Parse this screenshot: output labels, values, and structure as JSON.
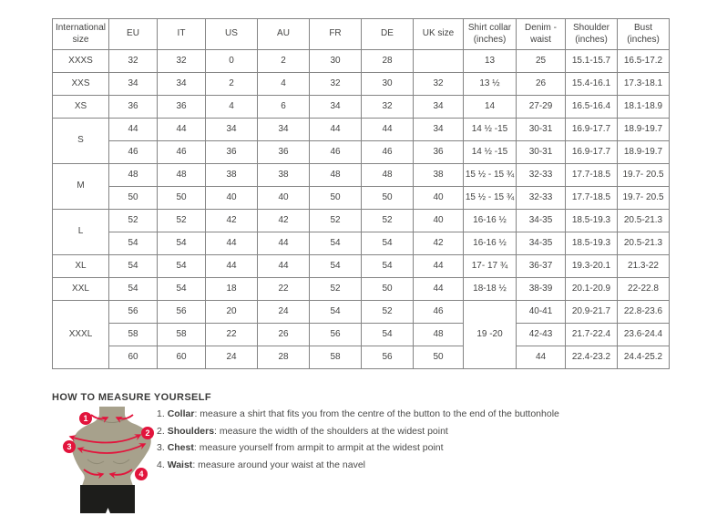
{
  "accent_color": "#e2143c",
  "figure_color": "#a7a18c",
  "size_table": {
    "columns": [
      "International size",
      "EU",
      "IT",
      "US",
      "AU",
      "FR",
      "DE",
      "UK size",
      "Shirt collar (inches)",
      "Denim - waist",
      "Shoulder (inches)",
      "Bust (inches)"
    ],
    "rows": [
      [
        {
          "t": "XXXS"
        },
        {
          "t": "32"
        },
        {
          "t": "32"
        },
        {
          "t": "0"
        },
        {
          "t": "2"
        },
        {
          "t": "30"
        },
        {
          "t": "28"
        },
        {
          "t": ""
        },
        {
          "t": "13"
        },
        {
          "t": "25"
        },
        {
          "t": "15.1-15.7"
        },
        {
          "t": "16.5-17.2"
        }
      ],
      [
        {
          "t": "XXS"
        },
        {
          "t": "34"
        },
        {
          "t": "34"
        },
        {
          "t": "2"
        },
        {
          "t": "4"
        },
        {
          "t": "32"
        },
        {
          "t": "30"
        },
        {
          "t": "32"
        },
        {
          "t": "13 ½"
        },
        {
          "t": "26"
        },
        {
          "t": "15.4-16.1"
        },
        {
          "t": "17.3-18.1"
        }
      ],
      [
        {
          "t": "XS"
        },
        {
          "t": "36"
        },
        {
          "t": "36"
        },
        {
          "t": "4"
        },
        {
          "t": "6"
        },
        {
          "t": "34"
        },
        {
          "t": "32"
        },
        {
          "t": "34"
        },
        {
          "t": "14"
        },
        {
          "t": "27-29"
        },
        {
          "t": "16.5-16.4"
        },
        {
          "t": "18.1-18.9"
        }
      ],
      [
        {
          "t": "S",
          "rs": 2
        },
        {
          "t": "44"
        },
        {
          "t": "44"
        },
        {
          "t": "34"
        },
        {
          "t": "34"
        },
        {
          "t": "44"
        },
        {
          "t": "44"
        },
        {
          "t": "34"
        },
        {
          "t": "14 ½ -15"
        },
        {
          "t": "30-31"
        },
        {
          "t": "16.9-17.7"
        },
        {
          "t": "18.9-19.7"
        }
      ],
      [
        {
          "t": "46"
        },
        {
          "t": "46"
        },
        {
          "t": "36"
        },
        {
          "t": "36"
        },
        {
          "t": "46"
        },
        {
          "t": "46"
        },
        {
          "t": "36"
        },
        {
          "t": "14 ½ -15"
        },
        {
          "t": "30-31"
        },
        {
          "t": "16.9-17.7"
        },
        {
          "t": "18.9-19.7"
        }
      ],
      [
        {
          "t": "M",
          "rs": 2
        },
        {
          "t": "48"
        },
        {
          "t": "48"
        },
        {
          "t": "38"
        },
        {
          "t": "38"
        },
        {
          "t": "48"
        },
        {
          "t": "48"
        },
        {
          "t": "38"
        },
        {
          "t": "15 ½ - 15 ¾"
        },
        {
          "t": "32-33"
        },
        {
          "t": "17.7-18.5"
        },
        {
          "t": "19.7- 20.5"
        }
      ],
      [
        {
          "t": "50"
        },
        {
          "t": "50"
        },
        {
          "t": "40"
        },
        {
          "t": "40"
        },
        {
          "t": "50"
        },
        {
          "t": "50"
        },
        {
          "t": "40"
        },
        {
          "t": "15 ½ - 15 ¾"
        },
        {
          "t": "32-33"
        },
        {
          "t": "17.7-18.5"
        },
        {
          "t": "19.7- 20.5"
        }
      ],
      [
        {
          "t": "L",
          "rs": 2
        },
        {
          "t": "52"
        },
        {
          "t": "52"
        },
        {
          "t": "42"
        },
        {
          "t": "42"
        },
        {
          "t": "52"
        },
        {
          "t": "52"
        },
        {
          "t": "40"
        },
        {
          "t": "16-16 ½"
        },
        {
          "t": "34-35"
        },
        {
          "t": "18.5-19.3"
        },
        {
          "t": "20.5-21.3"
        }
      ],
      [
        {
          "t": "54"
        },
        {
          "t": "54"
        },
        {
          "t": "44"
        },
        {
          "t": "44"
        },
        {
          "t": "54"
        },
        {
          "t": "54"
        },
        {
          "t": "42"
        },
        {
          "t": "16-16 ½"
        },
        {
          "t": "34-35"
        },
        {
          "t": "18.5-19.3"
        },
        {
          "t": "20.5-21.3"
        }
      ],
      [
        {
          "t": "XL"
        },
        {
          "t": "54"
        },
        {
          "t": "54"
        },
        {
          "t": "44"
        },
        {
          "t": "44"
        },
        {
          "t": "54"
        },
        {
          "t": "54"
        },
        {
          "t": "44"
        },
        {
          "t": "17- 17 ¾"
        },
        {
          "t": "36-37"
        },
        {
          "t": "19.3-20.1"
        },
        {
          "t": "21.3-22"
        }
      ],
      [
        {
          "t": "XXL"
        },
        {
          "t": "54"
        },
        {
          "t": "54"
        },
        {
          "t": "18"
        },
        {
          "t": "22"
        },
        {
          "t": "52"
        },
        {
          "t": "50"
        },
        {
          "t": "44"
        },
        {
          "t": "18-18 ½"
        },
        {
          "t": "38-39"
        },
        {
          "t": "20.1-20.9"
        },
        {
          "t": "22-22.8"
        }
      ],
      [
        {
          "t": "XXXL",
          "rs": 3
        },
        {
          "t": "56"
        },
        {
          "t": "56"
        },
        {
          "t": "20"
        },
        {
          "t": "24"
        },
        {
          "t": "54"
        },
        {
          "t": "52"
        },
        {
          "t": "46"
        },
        {
          "t": "19 -20",
          "rs": 3
        },
        {
          "t": "40-41"
        },
        {
          "t": "20.9-21.7"
        },
        {
          "t": "22.8-23.6"
        }
      ],
      [
        {
          "t": "58"
        },
        {
          "t": "58"
        },
        {
          "t": "22"
        },
        {
          "t": "26"
        },
        {
          "t": "56"
        },
        {
          "t": "54"
        },
        {
          "t": "48"
        },
        {
          "t": "42-43"
        },
        {
          "t": "21.7-22.4"
        },
        {
          "t": "23.6-24.4"
        }
      ],
      [
        {
          "t": "60"
        },
        {
          "t": "60"
        },
        {
          "t": "24"
        },
        {
          "t": "28"
        },
        {
          "t": "58"
        },
        {
          "t": "56"
        },
        {
          "t": "50"
        },
        {
          "t": "44"
        },
        {
          "t": "22.4-23.2"
        },
        {
          "t": "24.4-25.2"
        }
      ]
    ]
  },
  "measure_guide": {
    "title": "HOW TO MEASURE YOURSELF",
    "badges": [
      "1",
      "2",
      "3",
      "4"
    ],
    "steps": [
      {
        "num": "1.",
        "label": "Collar",
        "text": ": measure a shirt that fits you from the centre of the button to the end of the buttonhole"
      },
      {
        "num": "2.",
        "label": "Shoulders",
        "text": ": measure the width of the shoulders at the widest point"
      },
      {
        "num": "3.",
        "label": "Chest",
        "text": ": measure yourself from armpit to armpit at the widest point"
      },
      {
        "num": "4.",
        "label": "Waist",
        "text": ": measure around your waist at the navel"
      }
    ]
  }
}
